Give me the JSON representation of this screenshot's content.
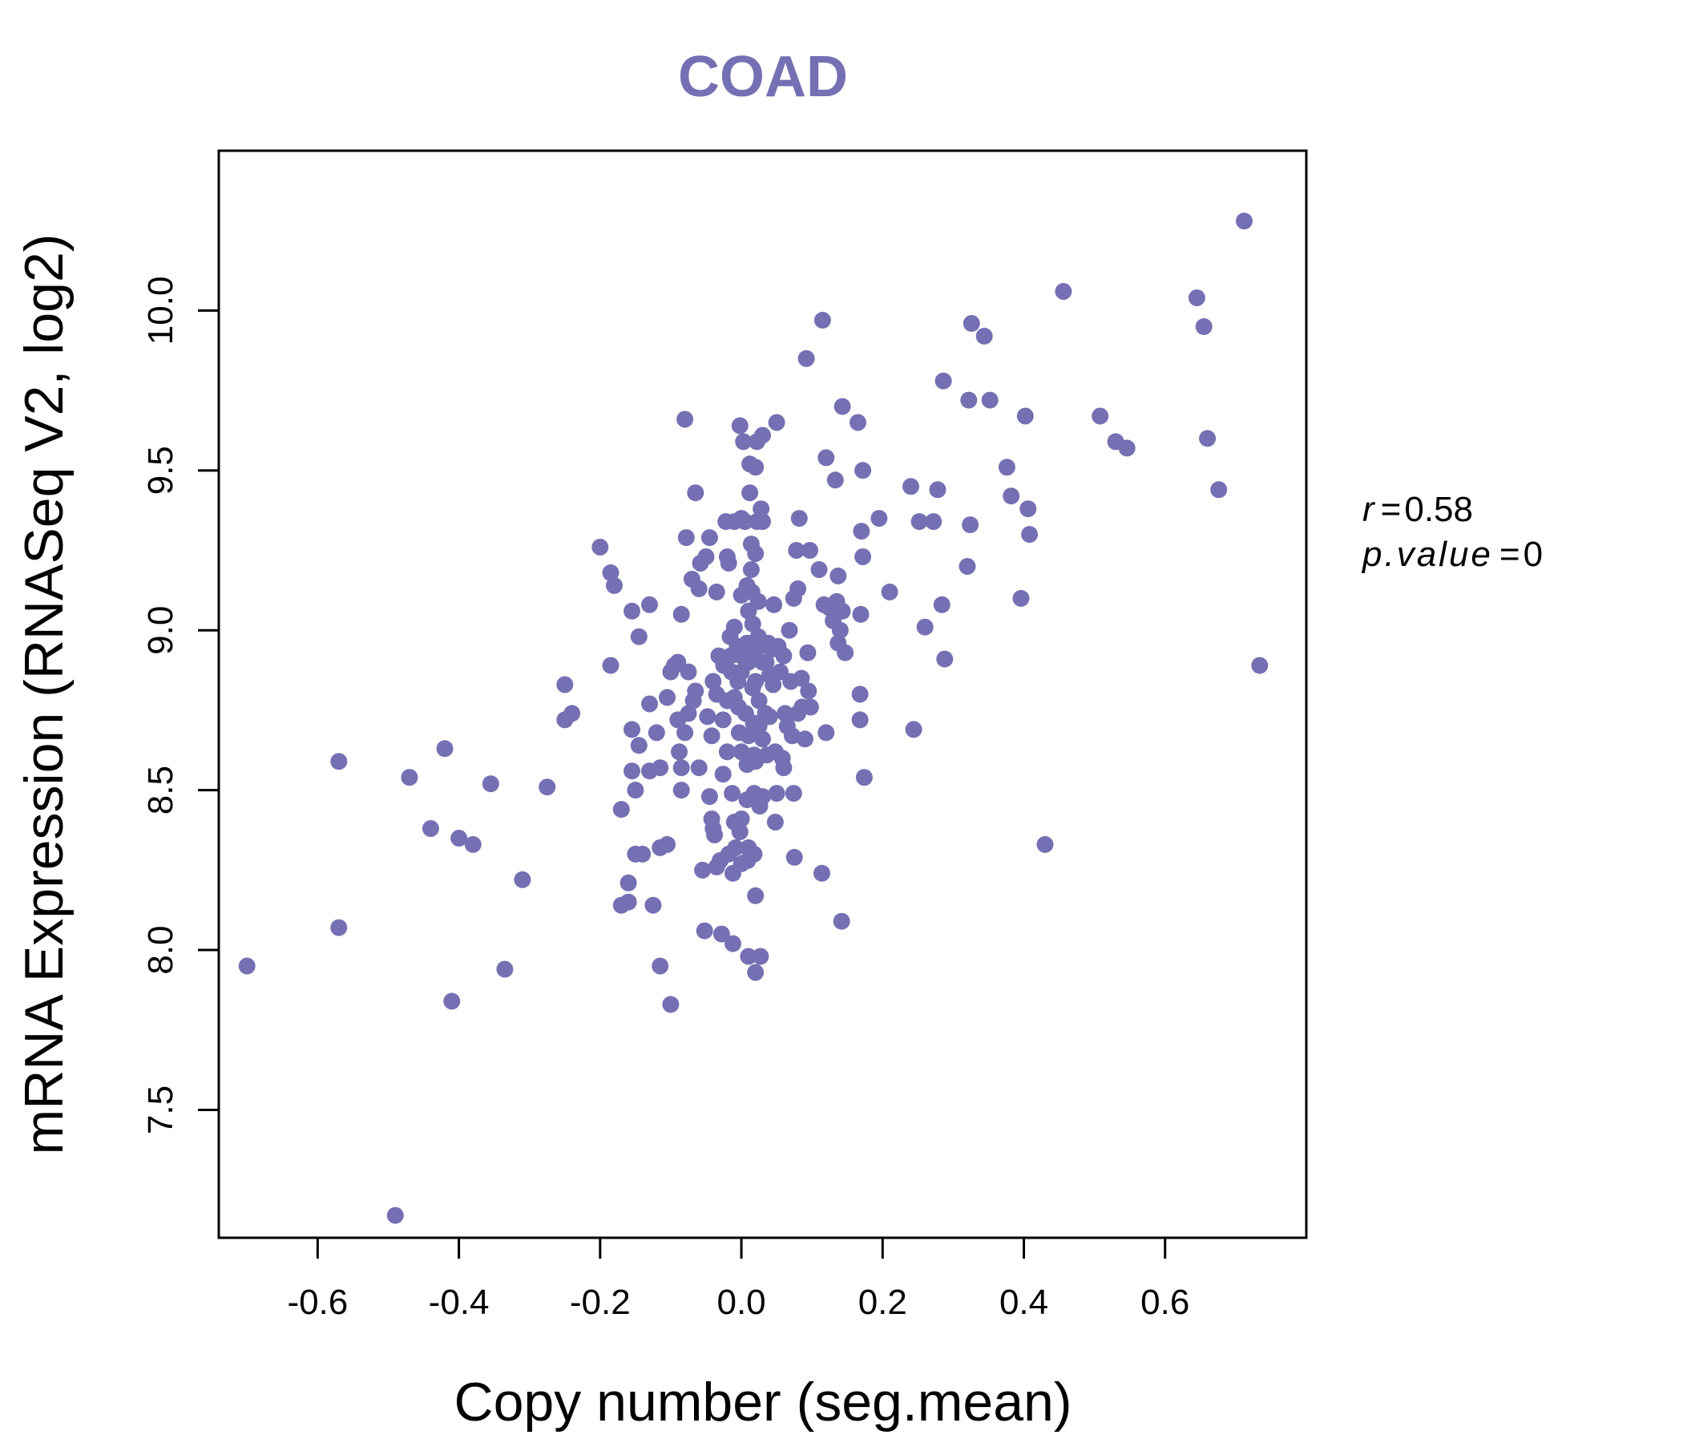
{
  "chart_data": {
    "type": "scatter",
    "title": "COAD",
    "xlabel": "Copy number (seg.mean)",
    "ylabel": "mRNA Expression (RNASeq V2, log2)",
    "xlim": [
      -0.74,
      0.8
    ],
    "ylim": [
      7.1,
      10.5
    ],
    "x_ticks": [
      -0.6,
      -0.4,
      -0.2,
      0.0,
      0.2,
      0.4,
      0.6
    ],
    "x_tick_labels": [
      "-0.6",
      "-0.4",
      "-0.2",
      "0.0",
      "0.2",
      "0.4",
      "0.6"
    ],
    "y_ticks": [
      7.5,
      8.0,
      8.5,
      9.0,
      9.5,
      10.0
    ],
    "y_tick_labels": [
      "7.5",
      "8.0",
      "8.5",
      "9.0",
      "9.5",
      "10.0"
    ],
    "grid": false,
    "point_color": "#7570b3",
    "title_color": "#7570b3",
    "annotations": {
      "r_label": "r",
      "r_value": "0.58",
      "p_label": "p.value",
      "p_value": "0"
    },
    "points": [
      [
        -0.7,
        7.95
      ],
      [
        -0.57,
        8.59
      ],
      [
        -0.57,
        8.07
      ],
      [
        -0.49,
        7.17
      ],
      [
        -0.47,
        8.54
      ],
      [
        -0.44,
        8.38
      ],
      [
        -0.42,
        8.63
      ],
      [
        -0.41,
        7.84
      ],
      [
        -0.4,
        8.35
      ],
      [
        -0.38,
        8.33
      ],
      [
        -0.355,
        8.52
      ],
      [
        -0.335,
        7.94
      ],
      [
        -0.31,
        8.22
      ],
      [
        -0.275,
        8.51
      ],
      [
        -0.25,
        8.83
      ],
      [
        -0.25,
        8.72
      ],
      [
        -0.24,
        8.74
      ],
      [
        -0.2,
        9.26
      ],
      [
        -0.185,
        9.18
      ],
      [
        -0.18,
        9.14
      ],
      [
        -0.185,
        8.89
      ],
      [
        -0.17,
        8.44
      ],
      [
        -0.17,
        8.14
      ],
      [
        -0.16,
        8.21
      ],
      [
        -0.16,
        8.15
      ],
      [
        -0.155,
        9.06
      ],
      [
        -0.155,
        8.69
      ],
      [
        -0.155,
        8.56
      ],
      [
        -0.15,
        8.5
      ],
      [
        -0.15,
        8.3
      ],
      [
        -0.145,
        8.98
      ],
      [
        -0.145,
        8.64
      ],
      [
        -0.14,
        8.3
      ],
      [
        -0.13,
        9.08
      ],
      [
        -0.13,
        8.77
      ],
      [
        -0.13,
        8.56
      ],
      [
        -0.125,
        8.14
      ],
      [
        -0.12,
        8.68
      ],
      [
        -0.115,
        8.57
      ],
      [
        -0.115,
        8.32
      ],
      [
        -0.115,
        7.95
      ],
      [
        -0.105,
        8.79
      ],
      [
        -0.105,
        8.33
      ],
      [
        -0.1,
        8.87
      ],
      [
        -0.1,
        7.83
      ],
      [
        -0.095,
        8.89
      ],
      [
        -0.09,
        8.9
      ],
      [
        -0.09,
        8.72
      ],
      [
        -0.088,
        8.62
      ],
      [
        -0.085,
        8.57
      ],
      [
        -0.085,
        8.5
      ],
      [
        -0.085,
        9.05
      ],
      [
        -0.08,
        9.66
      ],
      [
        -0.08,
        8.68
      ],
      [
        -0.078,
        9.29
      ],
      [
        -0.075,
        8.87
      ],
      [
        -0.075,
        8.74
      ],
      [
        -0.07,
        9.16
      ],
      [
        -0.068,
        8.78
      ],
      [
        -0.065,
        9.43
      ],
      [
        -0.065,
        8.81
      ],
      [
        -0.06,
        9.13
      ],
      [
        -0.06,
        8.57
      ],
      [
        -0.058,
        9.21
      ],
      [
        -0.055,
        8.25
      ],
      [
        -0.052,
        8.06
      ],
      [
        -0.05,
        9.23
      ],
      [
        -0.048,
        8.73
      ],
      [
        -0.045,
        9.29
      ],
      [
        -0.045,
        8.48
      ],
      [
        -0.042,
        8.41
      ],
      [
        -0.042,
        8.67
      ],
      [
        -0.04,
        8.84
      ],
      [
        -0.04,
        8.38
      ],
      [
        -0.038,
        8.36
      ],
      [
        -0.035,
        9.12
      ],
      [
        -0.035,
        8.8
      ],
      [
        -0.035,
        8.26
      ],
      [
        -0.032,
        8.92
      ],
      [
        -0.03,
        8.28
      ],
      [
        -0.028,
        8.05
      ],
      [
        -0.026,
        8.55
      ],
      [
        -0.026,
        8.72
      ],
      [
        -0.025,
        8.89
      ],
      [
        -0.022,
        9.34
      ],
      [
        -0.02,
        9.23
      ],
      [
        -0.02,
        8.78
      ],
      [
        -0.02,
        8.62
      ],
      [
        -0.018,
        8.3
      ],
      [
        -0.018,
        9.21
      ],
      [
        -0.016,
        8.98
      ],
      [
        -0.015,
        8.92
      ],
      [
        -0.014,
        8.87
      ],
      [
        -0.013,
        8.49
      ],
      [
        -0.012,
        8.24
      ],
      [
        -0.012,
        8.02
      ],
      [
        -0.01,
        9.34
      ],
      [
        -0.01,
        9.01
      ],
      [
        -0.01,
        8.79
      ],
      [
        -0.01,
        8.4
      ],
      [
        -0.008,
        8.32
      ],
      [
        -0.006,
        8.95
      ],
      [
        -0.005,
        8.84
      ],
      [
        -0.004,
        8.76
      ],
      [
        -0.003,
        8.68
      ],
      [
        -0.002,
        8.37
      ],
      [
        -0.002,
        9.64
      ],
      [
        0.0,
        9.35
      ],
      [
        0.0,
        9.11
      ],
      [
        0.0,
        8.92
      ],
      [
        0.0,
        8.87
      ],
      [
        0.0,
        8.62
      ],
      [
        0.0,
        8.41
      ],
      [
        0.0,
        8.27
      ],
      [
        0.003,
        9.59
      ],
      [
        0.005,
        9.34
      ],
      [
        0.006,
        8.74
      ],
      [
        0.008,
        9.14
      ],
      [
        0.008,
        8.96
      ],
      [
        0.008,
        8.58
      ],
      [
        0.008,
        8.47
      ],
      [
        0.009,
        8.28
      ],
      [
        0.01,
        9.06
      ],
      [
        0.01,
        8.9
      ],
      [
        0.01,
        8.67
      ],
      [
        0.01,
        8.32
      ],
      [
        0.01,
        7.98
      ],
      [
        0.012,
        9.52
      ],
      [
        0.012,
        9.43
      ],
      [
        0.014,
        9.27
      ],
      [
        0.014,
        9.19
      ],
      [
        0.015,
        9.12
      ],
      [
        0.016,
        9.02
      ],
      [
        0.016,
        8.82
      ],
      [
        0.017,
        8.71
      ],
      [
        0.018,
        8.61
      ],
      [
        0.018,
        8.49
      ],
      [
        0.018,
        8.3
      ],
      [
        0.02,
        9.51
      ],
      [
        0.02,
        9.24
      ],
      [
        0.02,
        8.94
      ],
      [
        0.02,
        8.84
      ],
      [
        0.02,
        8.59
      ],
      [
        0.02,
        8.17
      ],
      [
        0.02,
        7.93
      ],
      [
        0.022,
        9.59
      ],
      [
        0.022,
        9.34
      ],
      [
        0.024,
        9.09
      ],
      [
        0.024,
        8.98
      ],
      [
        0.025,
        8.78
      ],
      [
        0.025,
        8.7
      ],
      [
        0.026,
        8.45
      ],
      [
        0.027,
        7.98
      ],
      [
        0.028,
        9.38
      ],
      [
        0.03,
        9.61
      ],
      [
        0.03,
        9.34
      ],
      [
        0.03,
        8.9
      ],
      [
        0.03,
        8.66
      ],
      [
        0.03,
        8.48
      ],
      [
        0.032,
        8.96
      ],
      [
        0.034,
        8.74
      ],
      [
        0.035,
        8.9
      ],
      [
        0.036,
        8.61
      ],
      [
        0.038,
        8.96
      ],
      [
        0.04,
        8.86
      ],
      [
        0.04,
        8.73
      ],
      [
        0.042,
        8.94
      ],
      [
        0.045,
        8.83
      ],
      [
        0.046,
        9.08
      ],
      [
        0.048,
        8.62
      ],
      [
        0.048,
        8.4
      ],
      [
        0.05,
        9.65
      ],
      [
        0.05,
        8.49
      ],
      [
        0.052,
        8.95
      ],
      [
        0.055,
        8.87
      ],
      [
        0.058,
        8.6
      ],
      [
        0.06,
        8.92
      ],
      [
        0.06,
        8.57
      ],
      [
        0.062,
        8.74
      ],
      [
        0.065,
        8.7
      ],
      [
        0.068,
        9.0
      ],
      [
        0.07,
        8.84
      ],
      [
        0.072,
        8.67
      ],
      [
        0.074,
        9.1
      ],
      [
        0.074,
        8.49
      ],
      [
        0.075,
        8.29
      ],
      [
        0.078,
        9.25
      ],
      [
        0.08,
        8.74
      ],
      [
        0.08,
        9.13
      ],
      [
        0.082,
        9.35
      ],
      [
        0.085,
        8.85
      ],
      [
        0.086,
        8.76
      ],
      [
        0.09,
        8.66
      ],
      [
        0.092,
        9.85
      ],
      [
        0.094,
        8.93
      ],
      [
        0.095,
        8.81
      ],
      [
        0.097,
        9.25
      ],
      [
        0.098,
        8.76
      ],
      [
        0.11,
        9.19
      ],
      [
        0.114,
        8.24
      ],
      [
        0.115,
        9.97
      ],
      [
        0.117,
        9.08
      ],
      [
        0.12,
        8.68
      ],
      [
        0.12,
        9.54
      ],
      [
        0.125,
        9.07
      ],
      [
        0.13,
        9.03
      ],
      [
        0.133,
        9.47
      ],
      [
        0.135,
        9.09
      ],
      [
        0.137,
        9.17
      ],
      [
        0.137,
        8.96
      ],
      [
        0.14,
        9.0
      ],
      [
        0.142,
        8.09
      ],
      [
        0.143,
        9.7
      ],
      [
        0.143,
        9.06
      ],
      [
        0.147,
        8.93
      ],
      [
        0.165,
        9.65
      ],
      [
        0.168,
        8.8
      ],
      [
        0.168,
        8.72
      ],
      [
        0.169,
        9.05
      ],
      [
        0.17,
        9.31
      ],
      [
        0.172,
        9.5
      ],
      [
        0.172,
        9.23
      ],
      [
        0.174,
        8.54
      ],
      [
        0.195,
        9.35
      ],
      [
        0.21,
        9.12
      ],
      [
        0.24,
        9.45
      ],
      [
        0.244,
        8.69
      ],
      [
        0.252,
        9.34
      ],
      [
        0.26,
        9.01
      ],
      [
        0.272,
        9.34
      ],
      [
        0.278,
        9.44
      ],
      [
        0.284,
        9.08
      ],
      [
        0.286,
        9.78
      ],
      [
        0.288,
        8.91
      ],
      [
        0.32,
        9.2
      ],
      [
        0.322,
        9.72
      ],
      [
        0.324,
        9.33
      ],
      [
        0.326,
        9.96
      ],
      [
        0.344,
        9.92
      ],
      [
        0.352,
        9.72
      ],
      [
        0.376,
        9.51
      ],
      [
        0.382,
        9.42
      ],
      [
        0.396,
        9.1
      ],
      [
        0.402,
        9.67
      ],
      [
        0.406,
        9.38
      ],
      [
        0.408,
        9.3
      ],
      [
        0.43,
        8.33
      ],
      [
        0.456,
        10.06
      ],
      [
        0.508,
        9.67
      ],
      [
        0.53,
        9.59
      ],
      [
        0.546,
        9.57
      ],
      [
        0.645,
        10.04
      ],
      [
        0.655,
        9.95
      ],
      [
        0.66,
        9.6
      ],
      [
        0.676,
        9.44
      ],
      [
        0.712,
        10.28
      ],
      [
        0.734,
        8.89
      ]
    ]
  }
}
